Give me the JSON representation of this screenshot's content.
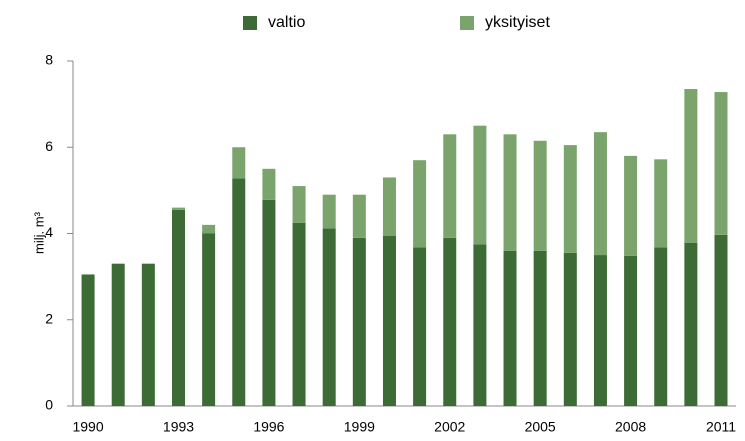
{
  "chart_data": {
    "type": "stacked_bar",
    "y_label": "milj. m³",
    "categories": [
      "1990",
      null,
      null,
      "1993",
      null,
      null,
      "1996",
      null,
      null,
      "1999",
      null,
      null,
      "2002",
      null,
      null,
      "2005",
      null,
      null,
      "2008",
      null,
      null,
      "2011"
    ],
    "series": [
      {
        "name": "valtio",
        "color": "#3d6b35",
        "values": [
          3.05,
          3.3,
          3.3,
          4.55,
          4.0,
          5.28,
          4.78,
          4.25,
          4.12,
          3.9,
          3.95,
          3.68,
          3.9,
          3.75,
          3.6,
          3.6,
          3.55,
          3.5,
          3.48,
          3.68,
          3.78,
          3.97
        ]
      },
      {
        "name": "yksityiset",
        "color": "#7ba46c",
        "values": [
          0,
          0,
          0,
          0.05,
          0.2,
          0.72,
          0.72,
          0.85,
          0.78,
          1.0,
          1.35,
          2.02,
          2.4,
          2.75,
          2.7,
          2.55,
          2.5,
          2.85,
          2.32,
          2.04,
          3.57,
          3.31
        ]
      }
    ],
    "ylim": [
      0,
      8
    ],
    "yticks": [
      0,
      2,
      4,
      6,
      8
    ],
    "grid": false
  }
}
